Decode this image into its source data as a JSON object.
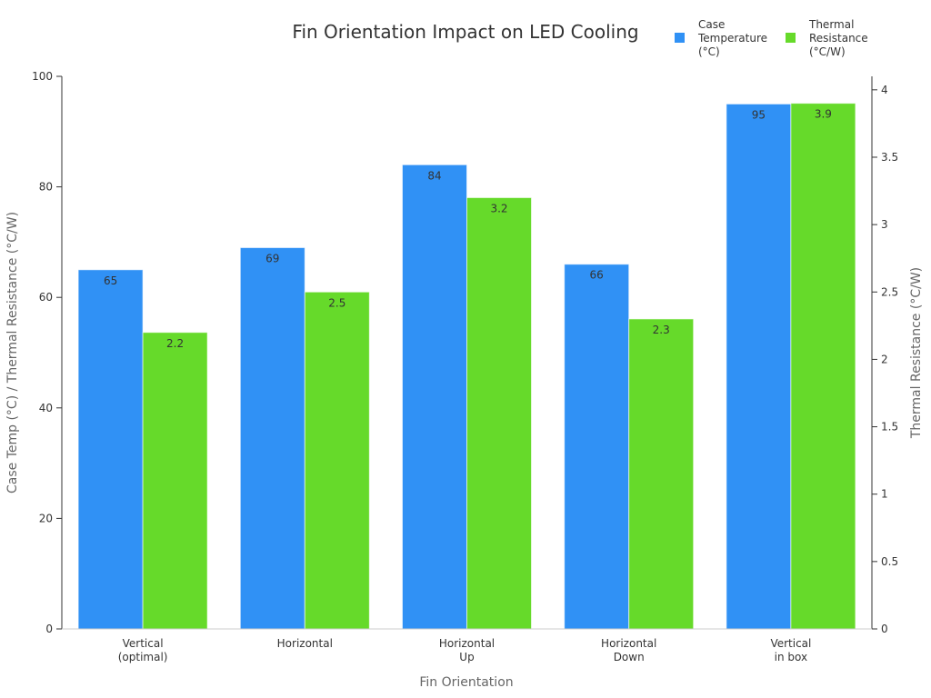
{
  "chart_data": {
    "type": "bar",
    "title": "Fin Orientation Impact on LED Cooling",
    "xlabel": "Fin Orientation",
    "ylabel": "Case Temp (°C) / Thermal Resistance (°C/W)",
    "y2label": "Thermal Resistance (°C/W)",
    "categories": [
      [
        "Vertical",
        "(optimal)"
      ],
      [
        "Horizontal"
      ],
      [
        "Horizontal",
        "Up"
      ],
      [
        "Horizontal",
        "Down"
      ],
      [
        "Vertical",
        "in box"
      ]
    ],
    "ylim": [
      0,
      100
    ],
    "yticks": [
      0,
      20,
      40,
      60,
      80,
      100
    ],
    "y2lim": [
      0,
      4.1
    ],
    "y2ticks": [
      "0",
      "0.5",
      "1",
      "1.5",
      "2",
      "2.5",
      "3",
      "3.5",
      "4"
    ],
    "grid": false,
    "legend_placement": "top-right",
    "series": [
      {
        "name": [
          "Case",
          "Temperature",
          "(°C)"
        ],
        "axis": "left",
        "color": "#3091f5",
        "values": [
          65,
          69,
          84,
          66,
          95
        ]
      },
      {
        "name": [
          "Thermal",
          "Resistance",
          "(°C/W)"
        ],
        "axis": "right",
        "color": "#66da2a",
        "values": [
          2.2,
          2.5,
          3.2,
          2.3,
          3.9
        ]
      }
    ]
  }
}
